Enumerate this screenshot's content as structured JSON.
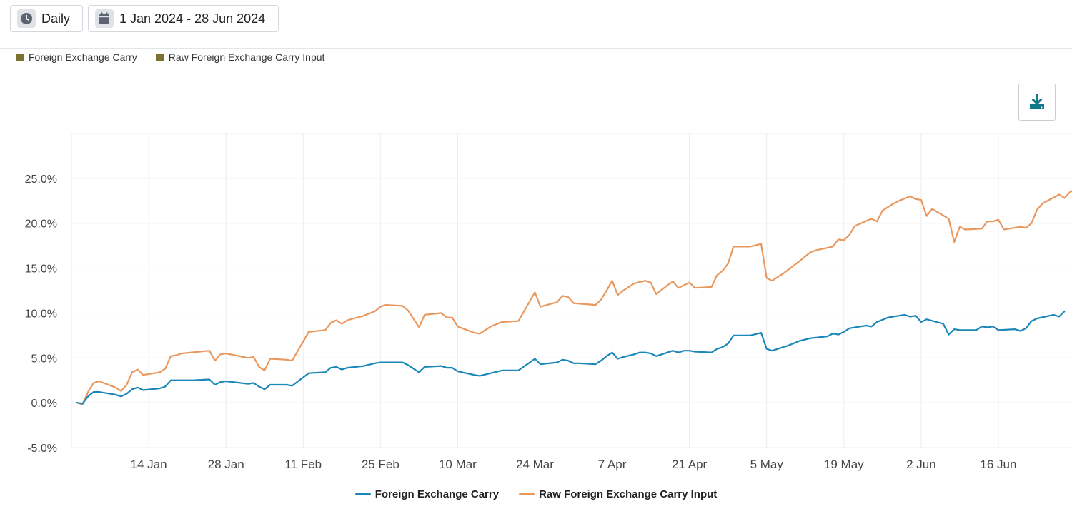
{
  "toolbar": {
    "period_label": "Daily",
    "period_icon": "clock-icon",
    "date_range_label": "1 Jan 2024 - 28 Jun 2024",
    "date_icon": "calendar-icon"
  },
  "top_legend": [
    {
      "label": "Foreign Exchange Carry",
      "color": "#7d7232"
    },
    {
      "label": "Raw Foreign Exchange Carry Input",
      "color": "#7d7232"
    }
  ],
  "download": {
    "icon": "download-icon",
    "color": "#12798a"
  },
  "colors": {
    "series_fx_carry": "#1a87b8",
    "series_raw_input": "#e8975d",
    "grid": "#ececec"
  },
  "chart_data": {
    "type": "line",
    "title": "",
    "xlabel": "",
    "ylabel": "",
    "x_ticks": [
      {
        "date": "2024-01-14",
        "label": "14 Jan"
      },
      {
        "date": "2024-01-28",
        "label": "28 Jan"
      },
      {
        "date": "2024-02-11",
        "label": "11 Feb"
      },
      {
        "date": "2024-02-25",
        "label": "25 Feb"
      },
      {
        "date": "2024-03-10",
        "label": "10 Mar"
      },
      {
        "date": "2024-03-24",
        "label": "24 Mar"
      },
      {
        "date": "2024-04-07",
        "label": "7 Apr"
      },
      {
        "date": "2024-04-21",
        "label": "21 Apr"
      },
      {
        "date": "2024-05-05",
        "label": "5 May"
      },
      {
        "date": "2024-05-19",
        "label": "19 May"
      },
      {
        "date": "2024-06-02",
        "label": "2 Jun"
      },
      {
        "date": "2024-06-16",
        "label": "16 Jun"
      }
    ],
    "y_ticks": [
      "-5.0%",
      "0.0%",
      "5.0%",
      "10.0%",
      "15.0%",
      "20.0%",
      "25.0%"
    ],
    "ylim": [
      -5,
      30
    ],
    "xlim": [
      "2023-12-31",
      "2024-06-28"
    ],
    "grid": true,
    "legend_position": "bottom-center",
    "series": [
      {
        "name": "Foreign Exchange Carry",
        "color": "#1a87b8",
        "points": [
          [
            "2024-01-01",
            0
          ],
          [
            "2024-01-02",
            -0.1
          ],
          [
            "2024-01-03",
            0.7
          ],
          [
            "2024-01-04",
            1.2
          ],
          [
            "2024-01-05",
            1.2
          ],
          [
            "2024-01-08",
            0.9
          ],
          [
            "2024-01-09",
            0.7
          ],
          [
            "2024-01-10",
            1.0
          ],
          [
            "2024-01-11",
            1.5
          ],
          [
            "2024-01-12",
            1.7
          ],
          [
            "2024-01-13",
            1.4
          ],
          [
            "2024-01-16",
            1.6
          ],
          [
            "2024-01-17",
            1.8
          ],
          [
            "2024-01-18",
            2.5
          ],
          [
            "2024-01-22",
            2.5
          ],
          [
            "2024-01-25",
            2.6
          ],
          [
            "2024-01-26",
            2.0
          ],
          [
            "2024-01-27",
            2.3
          ],
          [
            "2024-01-28",
            2.4
          ],
          [
            "2024-02-01",
            2.1
          ],
          [
            "2024-02-02",
            2.2
          ],
          [
            "2024-02-03",
            1.8
          ],
          [
            "2024-02-04",
            1.5
          ],
          [
            "2024-02-05",
            2.0
          ],
          [
            "2024-02-08",
            2.0
          ],
          [
            "2024-02-09",
            1.9
          ],
          [
            "2024-02-12",
            3.3
          ],
          [
            "2024-02-15",
            3.4
          ],
          [
            "2024-02-16",
            3.9
          ],
          [
            "2024-02-17",
            4.0
          ],
          [
            "2024-02-18",
            3.7
          ],
          [
            "2024-02-19",
            3.9
          ],
          [
            "2024-02-22",
            4.1
          ],
          [
            "2024-02-24",
            4.4
          ],
          [
            "2024-02-25",
            4.5
          ],
          [
            "2024-02-29",
            4.5
          ],
          [
            "2024-03-01",
            4.2
          ],
          [
            "2024-03-03",
            3.4
          ],
          [
            "2024-03-04",
            4.0
          ],
          [
            "2024-03-07",
            4.1
          ],
          [
            "2024-03-08",
            3.9
          ],
          [
            "2024-03-09",
            3.9
          ],
          [
            "2024-03-10",
            3.5
          ],
          [
            "2024-03-13",
            3.1
          ],
          [
            "2024-03-14",
            3.0
          ],
          [
            "2024-03-16",
            3.3
          ],
          [
            "2024-03-18",
            3.6
          ],
          [
            "2024-03-21",
            3.6
          ],
          [
            "2024-03-24",
            4.9
          ],
          [
            "2024-03-25",
            4.3
          ],
          [
            "2024-03-28",
            4.5
          ],
          [
            "2024-03-29",
            4.8
          ],
          [
            "2024-03-30",
            4.7
          ],
          [
            "2024-03-31",
            4.4
          ],
          [
            "2024-04-01",
            4.4
          ],
          [
            "2024-04-04",
            4.3
          ],
          [
            "2024-04-05",
            4.7
          ],
          [
            "2024-04-06",
            5.2
          ],
          [
            "2024-04-07",
            5.6
          ],
          [
            "2024-04-08",
            4.9
          ],
          [
            "2024-04-09",
            5.1
          ],
          [
            "2024-04-11",
            5.4
          ],
          [
            "2024-04-12",
            5.6
          ],
          [
            "2024-04-13",
            5.6
          ],
          [
            "2024-04-14",
            5.5
          ],
          [
            "2024-04-15",
            5.2
          ],
          [
            "2024-04-17",
            5.6
          ],
          [
            "2024-04-18",
            5.8
          ],
          [
            "2024-04-19",
            5.6
          ],
          [
            "2024-04-20",
            5.8
          ],
          [
            "2024-04-21",
            5.8
          ],
          [
            "2024-04-22",
            5.7
          ],
          [
            "2024-04-25",
            5.6
          ],
          [
            "2024-04-26",
            6.0
          ],
          [
            "2024-04-27",
            6.2
          ],
          [
            "2024-04-28",
            6.6
          ],
          [
            "2024-04-29",
            7.5
          ],
          [
            "2024-05-02",
            7.5
          ],
          [
            "2024-05-04",
            7.8
          ],
          [
            "2024-05-05",
            6.0
          ],
          [
            "2024-05-06",
            5.8
          ],
          [
            "2024-05-08",
            6.2
          ],
          [
            "2024-05-09",
            6.4
          ],
          [
            "2024-05-11",
            6.9
          ],
          [
            "2024-05-13",
            7.2
          ],
          [
            "2024-05-16",
            7.4
          ],
          [
            "2024-05-17",
            7.7
          ],
          [
            "2024-05-18",
            7.6
          ],
          [
            "2024-05-19",
            7.9
          ],
          [
            "2024-05-20",
            8.3
          ],
          [
            "2024-05-23",
            8.6
          ],
          [
            "2024-05-24",
            8.5
          ],
          [
            "2024-05-25",
            9.0
          ],
          [
            "2024-05-27",
            9.5
          ],
          [
            "2024-05-30",
            9.8
          ],
          [
            "2024-05-31",
            9.6
          ],
          [
            "2024-06-01",
            9.7
          ],
          [
            "2024-06-02",
            9.0
          ],
          [
            "2024-06-03",
            9.3
          ],
          [
            "2024-06-06",
            8.8
          ],
          [
            "2024-06-07",
            7.6
          ],
          [
            "2024-06-08",
            8.2
          ],
          [
            "2024-06-09",
            8.1
          ],
          [
            "2024-06-12",
            8.1
          ],
          [
            "2024-06-13",
            8.5
          ],
          [
            "2024-06-14",
            8.4
          ],
          [
            "2024-06-15",
            8.5
          ],
          [
            "2024-06-16",
            8.1
          ],
          [
            "2024-06-19",
            8.2
          ],
          [
            "2024-06-20",
            8.0
          ],
          [
            "2024-06-21",
            8.3
          ],
          [
            "2024-06-22",
            9.1
          ],
          [
            "2024-06-23",
            9.4
          ],
          [
            "2024-06-26",
            9.8
          ],
          [
            "2024-06-27",
            9.6
          ],
          [
            "2024-06-28",
            10.2
          ]
        ]
      },
      {
        "name": "Raw Foreign Exchange Carry Input",
        "color": "#e8975d",
        "points": [
          [
            "2024-01-01",
            0
          ],
          [
            "2024-01-02",
            -0.2
          ],
          [
            "2024-01-03",
            1.2
          ],
          [
            "2024-01-04",
            2.2
          ],
          [
            "2024-01-05",
            2.4
          ],
          [
            "2024-01-08",
            1.7
          ],
          [
            "2024-01-09",
            1.3
          ],
          [
            "2024-01-10",
            2.0
          ],
          [
            "2024-01-11",
            3.4
          ],
          [
            "2024-01-12",
            3.7
          ],
          [
            "2024-01-13",
            3.1
          ],
          [
            "2024-01-16",
            3.4
          ],
          [
            "2024-01-17",
            3.8
          ],
          [
            "2024-01-18",
            5.2
          ],
          [
            "2024-01-19",
            5.3
          ],
          [
            "2024-01-20",
            5.5
          ],
          [
            "2024-01-25",
            5.8
          ],
          [
            "2024-01-26",
            4.7
          ],
          [
            "2024-01-27",
            5.4
          ],
          [
            "2024-01-28",
            5.5
          ],
          [
            "2024-02-01",
            5.0
          ],
          [
            "2024-02-02",
            5.1
          ],
          [
            "2024-02-03",
            4.0
          ],
          [
            "2024-02-04",
            3.6
          ],
          [
            "2024-02-05",
            4.9
          ],
          [
            "2024-02-08",
            4.8
          ],
          [
            "2024-02-09",
            4.7
          ],
          [
            "2024-02-12",
            7.9
          ],
          [
            "2024-02-15",
            8.1
          ],
          [
            "2024-02-16",
            8.9
          ],
          [
            "2024-02-17",
            9.2
          ],
          [
            "2024-02-18",
            8.8
          ],
          [
            "2024-02-19",
            9.2
          ],
          [
            "2024-02-22",
            9.7
          ],
          [
            "2024-02-24",
            10.2
          ],
          [
            "2024-02-25",
            10.7
          ],
          [
            "2024-02-26",
            10.9
          ],
          [
            "2024-02-29",
            10.8
          ],
          [
            "2024-03-01",
            10.3
          ],
          [
            "2024-03-03",
            8.4
          ],
          [
            "2024-03-04",
            9.8
          ],
          [
            "2024-03-07",
            10.0
          ],
          [
            "2024-03-08",
            9.5
          ],
          [
            "2024-03-09",
            9.5
          ],
          [
            "2024-03-10",
            8.5
          ],
          [
            "2024-03-13",
            7.8
          ],
          [
            "2024-03-14",
            7.7
          ],
          [
            "2024-03-16",
            8.5
          ],
          [
            "2024-03-18",
            9.0
          ],
          [
            "2024-03-21",
            9.1
          ],
          [
            "2024-03-24",
            12.3
          ],
          [
            "2024-03-25",
            10.7
          ],
          [
            "2024-03-28",
            11.2
          ],
          [
            "2024-03-29",
            11.9
          ],
          [
            "2024-03-30",
            11.8
          ],
          [
            "2024-03-31",
            11.1
          ],
          [
            "2024-04-04",
            10.9
          ],
          [
            "2024-04-05",
            11.5
          ],
          [
            "2024-04-06",
            12.5
          ],
          [
            "2024-04-07",
            13.6
          ],
          [
            "2024-04-08",
            12.0
          ],
          [
            "2024-04-09",
            12.5
          ],
          [
            "2024-04-11",
            13.3
          ],
          [
            "2024-04-13",
            13.6
          ],
          [
            "2024-04-14",
            13.4
          ],
          [
            "2024-04-15",
            12.1
          ],
          [
            "2024-04-17",
            13.1
          ],
          [
            "2024-04-18",
            13.5
          ],
          [
            "2024-04-19",
            12.8
          ],
          [
            "2024-04-20",
            13.1
          ],
          [
            "2024-04-21",
            13.4
          ],
          [
            "2024-04-22",
            12.8
          ],
          [
            "2024-04-25",
            12.9
          ],
          [
            "2024-04-26",
            14.2
          ],
          [
            "2024-04-27",
            14.7
          ],
          [
            "2024-04-28",
            15.5
          ],
          [
            "2024-04-29",
            17.4
          ],
          [
            "2024-05-02",
            17.4
          ],
          [
            "2024-05-04",
            17.7
          ],
          [
            "2024-05-05",
            13.9
          ],
          [
            "2024-05-06",
            13.6
          ],
          [
            "2024-05-08",
            14.4
          ],
          [
            "2024-05-11",
            15.8
          ],
          [
            "2024-05-13",
            16.8
          ],
          [
            "2024-05-14",
            17.0
          ],
          [
            "2024-05-17",
            17.4
          ],
          [
            "2024-05-18",
            18.2
          ],
          [
            "2024-05-19",
            18.1
          ],
          [
            "2024-05-20",
            18.7
          ],
          [
            "2024-05-21",
            19.7
          ],
          [
            "2024-05-24",
            20.5
          ],
          [
            "2024-05-25",
            20.2
          ],
          [
            "2024-05-26",
            21.4
          ],
          [
            "2024-05-28",
            22.2
          ],
          [
            "2024-05-29",
            22.5
          ],
          [
            "2024-05-31",
            23.0
          ],
          [
            "2024-06-01",
            22.7
          ],
          [
            "2024-06-02",
            22.6
          ],
          [
            "2024-06-03",
            20.8
          ],
          [
            "2024-06-04",
            21.6
          ],
          [
            "2024-06-07",
            20.5
          ],
          [
            "2024-06-08",
            17.9
          ],
          [
            "2024-06-09",
            19.6
          ],
          [
            "2024-06-10",
            19.3
          ],
          [
            "2024-06-13",
            19.4
          ],
          [
            "2024-06-14",
            20.2
          ],
          [
            "2024-06-15",
            20.2
          ],
          [
            "2024-06-16",
            20.4
          ],
          [
            "2024-06-17",
            19.3
          ],
          [
            "2024-06-20",
            19.6
          ],
          [
            "2024-06-21",
            19.5
          ],
          [
            "2024-06-22",
            20.0
          ],
          [
            "2024-06-23",
            21.5
          ],
          [
            "2024-06-24",
            22.2
          ],
          [
            "2024-06-27",
            23.2
          ],
          [
            "2024-06-28",
            22.8
          ],
          [
            "2024-06-29",
            23.5
          ],
          [
            "2024-06-30",
            23.8
          ],
          [
            "2024-07-01",
            24.4
          ]
        ]
      }
    ]
  }
}
